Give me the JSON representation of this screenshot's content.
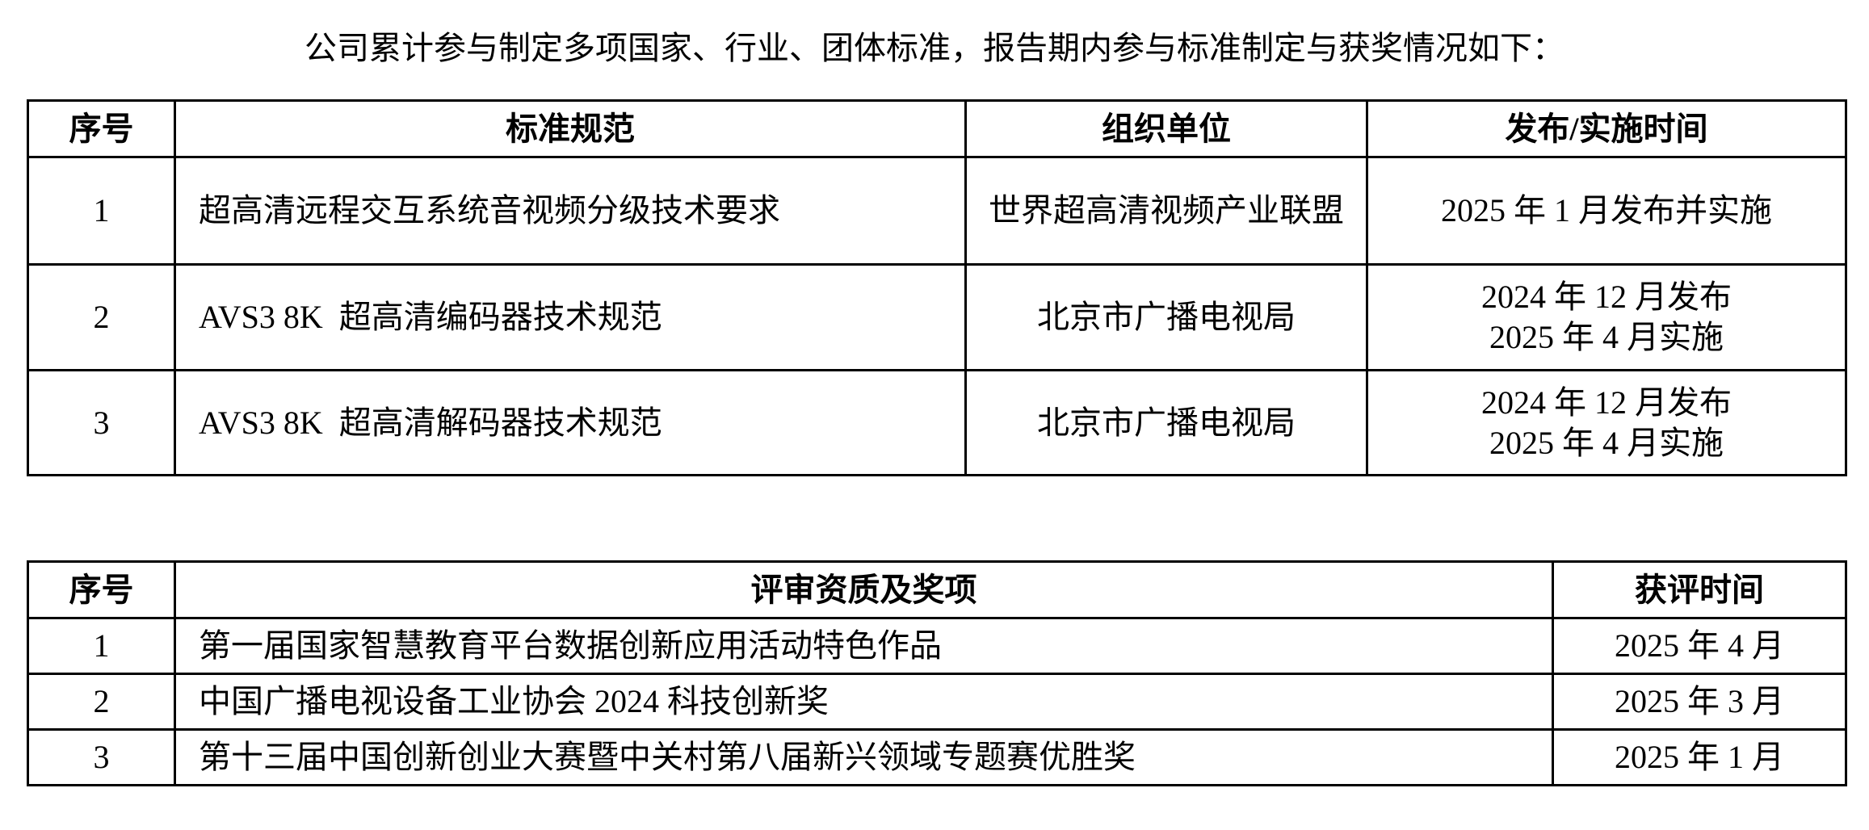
{
  "intro": "公司累计参与制定多项国家、行业、团体标准，报告期内参与标准制定与获奖情况如下：",
  "standards_table": {
    "headers": [
      "序号",
      "标准规范",
      "组织单位",
      "发布/实施时间"
    ],
    "rows": [
      {
        "no": "1",
        "name": "超高清远程交互系统音视频分级技术要求",
        "org": "世界超高清视频产业联盟",
        "time": "2025 年 1 月发布并实施"
      },
      {
        "no": "2",
        "name": "AVS3 8K  超高清编码器技术规范",
        "org": "北京市广播电视局",
        "time_lines": [
          "2024 年 12 月发布",
          "2025 年 4 月实施"
        ]
      },
      {
        "no": "3",
        "name": "AVS3 8K  超高清解码器技术规范",
        "org": "北京市广播电视局",
        "time_lines": [
          "2024 年 12 月发布",
          "2025 年 4 月实施"
        ]
      }
    ]
  },
  "awards_table": {
    "headers": [
      "序号",
      "评审资质及奖项",
      "获评时间"
    ],
    "rows": [
      {
        "no": "1",
        "name": "第一届国家智慧教育平台数据创新应用活动特色作品",
        "time": "2025 年 4 月"
      },
      {
        "no": "2",
        "name": "中国广播电视设备工业协会 2024 科技创新奖",
        "time": "2025 年 3 月"
      },
      {
        "no": "3",
        "name": "第十三届中国创新创业大赛暨中关村第八届新兴领域专题赛优胜奖",
        "time": "2025 年 1 月"
      }
    ]
  }
}
